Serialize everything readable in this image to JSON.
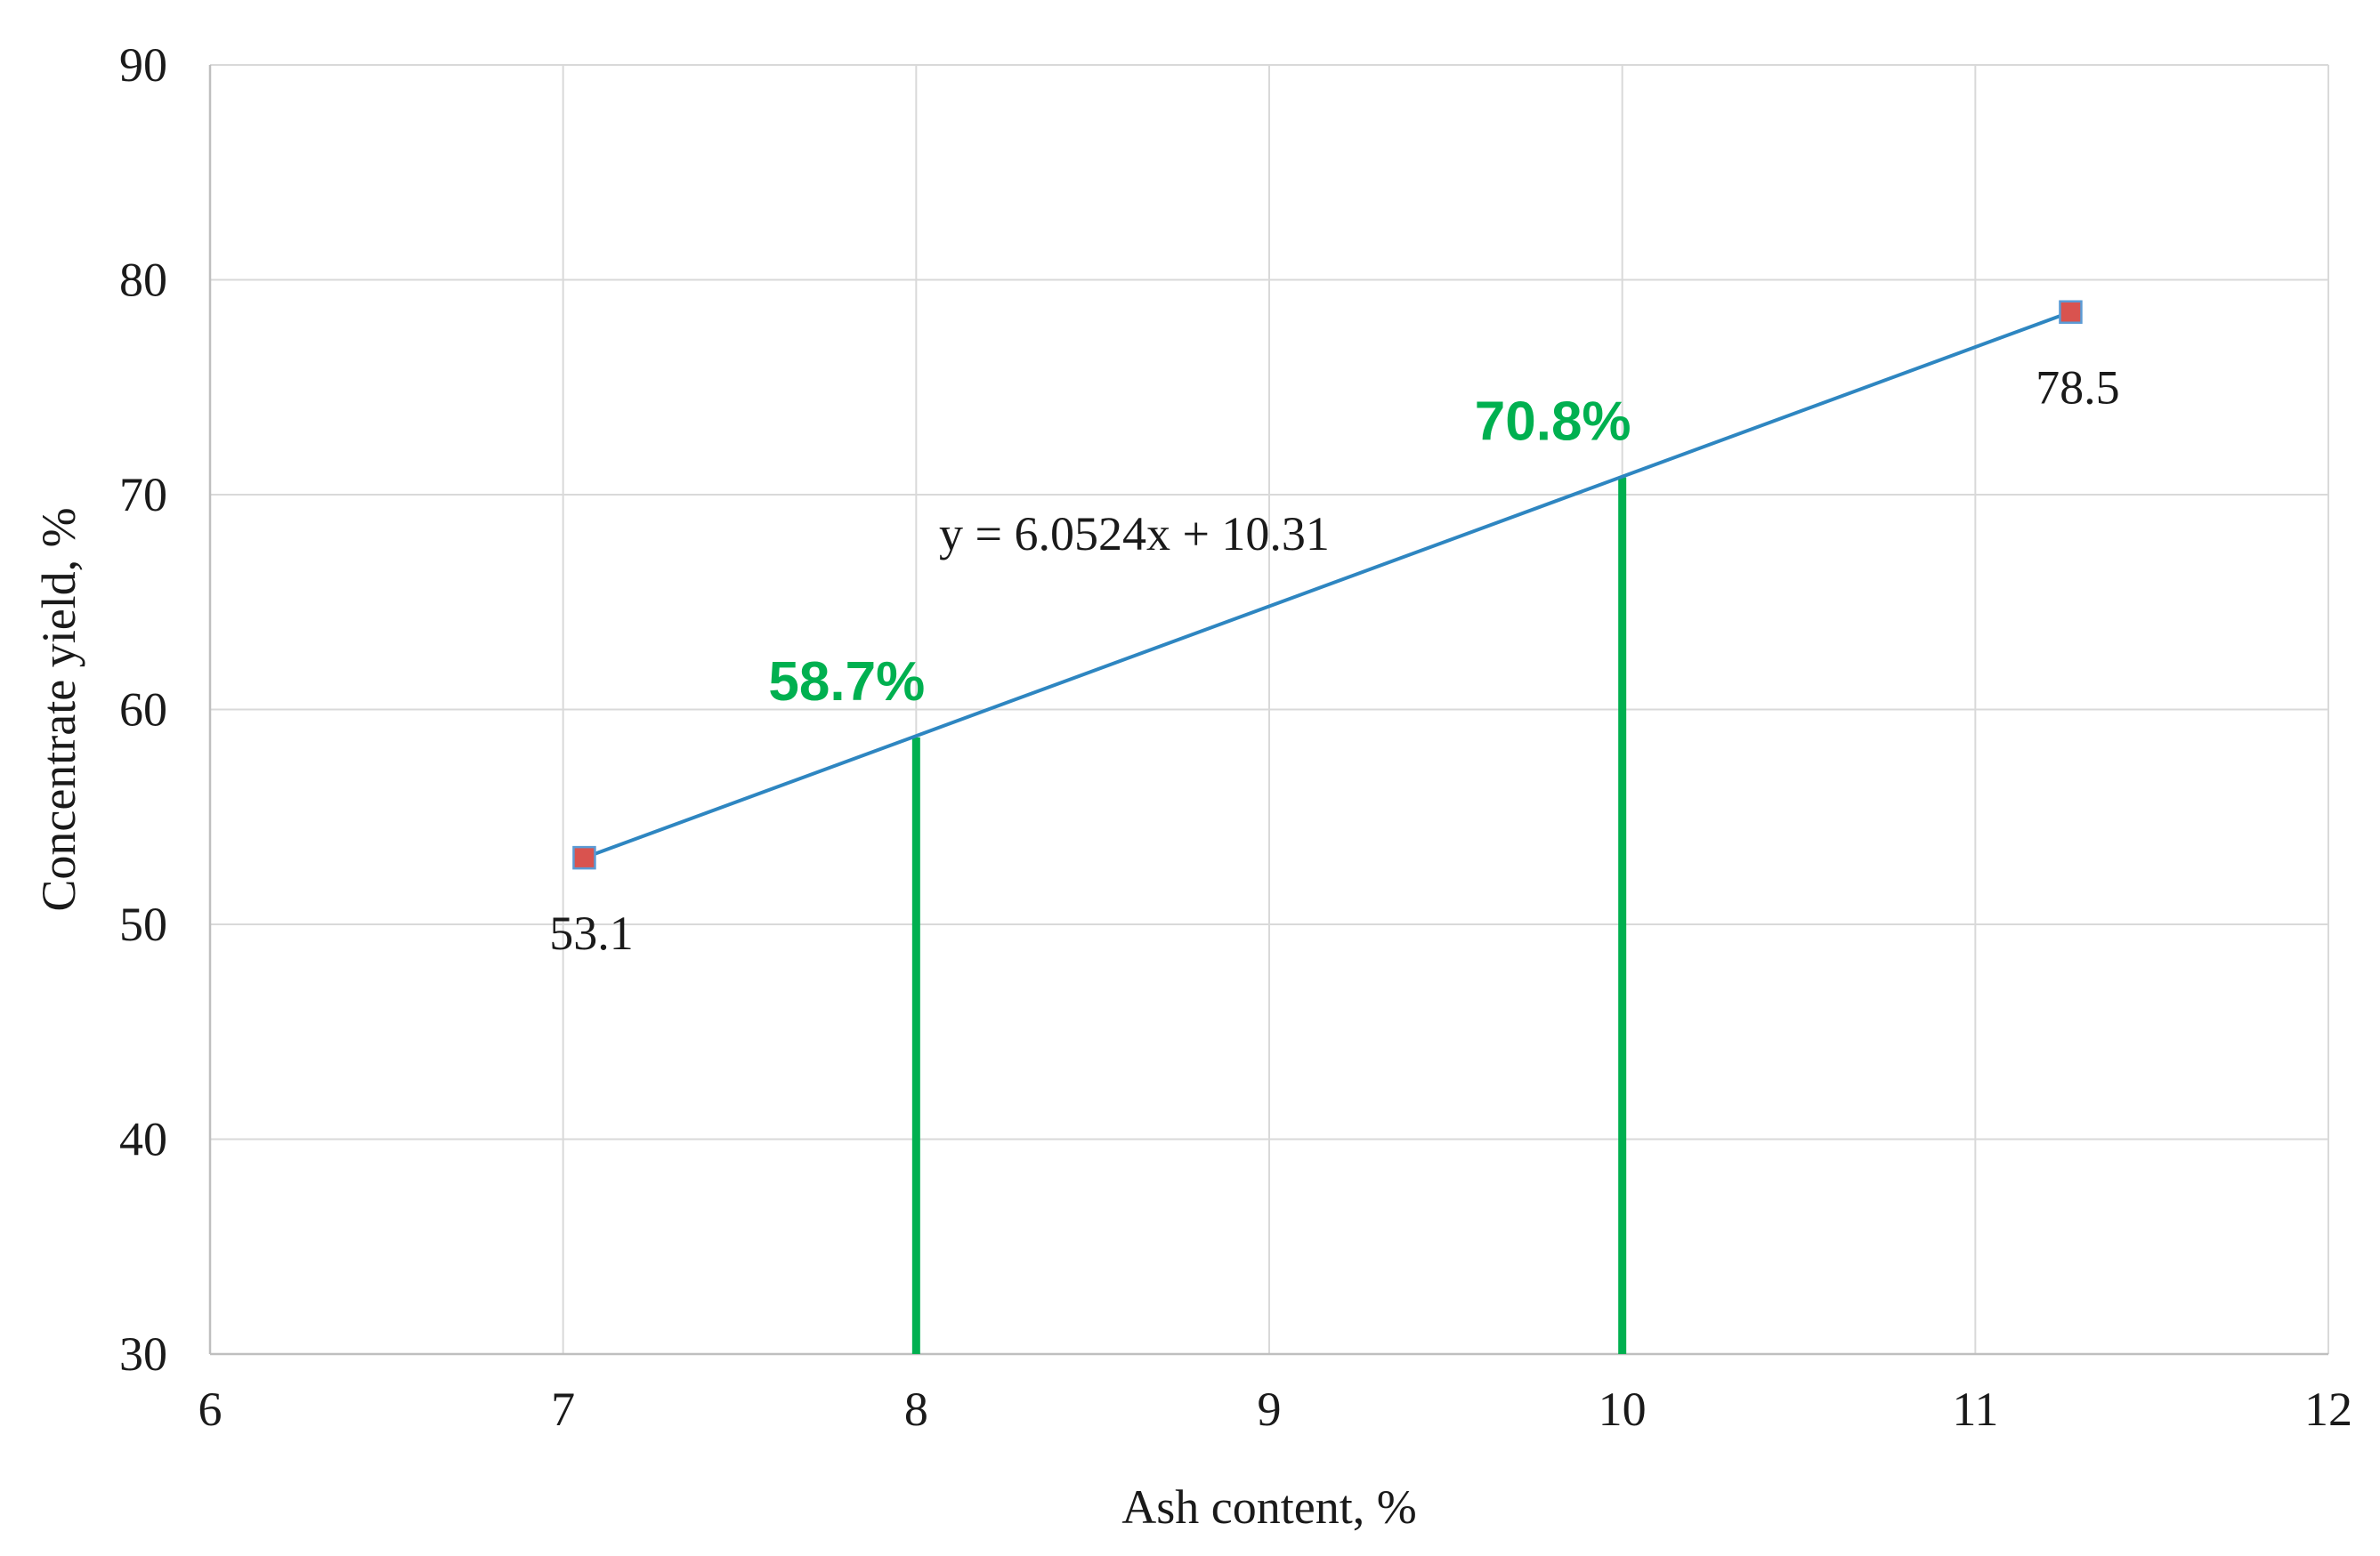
{
  "chart_data": {
    "type": "scatter",
    "title": "",
    "xlabel": "Ash content, %",
    "ylabel": "Concentrate yield, %",
    "xlim": [
      6,
      12
    ],
    "ylim": [
      30,
      90
    ],
    "x_ticks": [
      "6",
      "7",
      "8",
      "9",
      "10",
      "11",
      "12"
    ],
    "y_ticks": [
      "30",
      "40",
      "50",
      "60",
      "70",
      "80",
      "90"
    ],
    "grid": true,
    "series": [
      {
        "points": [
          {
            "x": 7.06,
            "y": 53.1,
            "label": "53.1"
          },
          {
            "x": 11.27,
            "y": 78.5,
            "label": "78.5"
          }
        ],
        "marker": "square",
        "marker_color": "#d9534f",
        "line_color": "#2e86c1"
      }
    ],
    "trendline": {
      "equation": "y = 6.0524x + 10.31",
      "slope": 6.0524,
      "intercept": 10.31,
      "color": "#2e86c1"
    },
    "annotations": [
      {
        "x": 8,
        "y": 58.7,
        "label": "58.7%"
      },
      {
        "x": 10,
        "y": 70.8,
        "label": "70.8%"
      }
    ],
    "annotation_color": "#00b050",
    "grid_color": "#d9d9d9",
    "axis_color": "#bfbfbf"
  }
}
